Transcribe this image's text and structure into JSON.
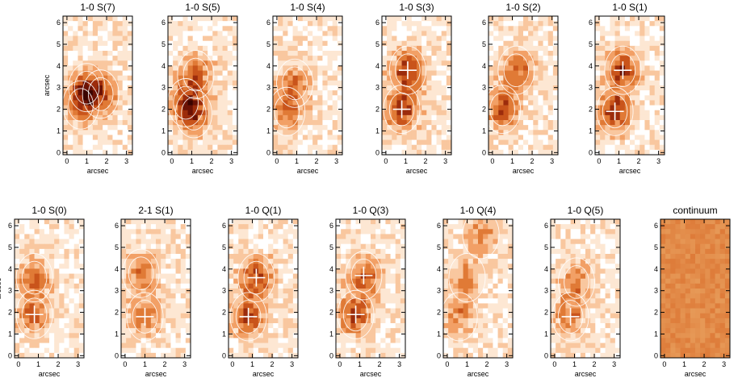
{
  "panels": [
    {
      "title": "1-0 S(7)",
      "peaks": [
        [
          0.7,
          2.2
        ],
        [
          1.7,
          2.7
        ],
        [
          1.0,
          3.0
        ]
      ],
      "crosses": [],
      "intensity": 0.7
    },
    {
      "title": "1-0 S(5)",
      "peaks": [
        [
          0.7,
          2.3
        ],
        [
          1.2,
          3.6
        ],
        [
          1.1,
          1.8
        ]
      ],
      "crosses": [],
      "intensity": 0.7
    },
    {
      "title": "1-0 S(4)",
      "peaks": [
        [
          0.5,
          1.9
        ],
        [
          0.9,
          3.2
        ]
      ],
      "crosses": [],
      "intensity": 0.65
    },
    {
      "title": "1-0 S(3)",
      "peaks": [
        [
          0.8,
          2.0
        ],
        [
          1.1,
          3.8
        ]
      ],
      "crosses": [
        [
          0.8,
          2.0
        ],
        [
          1.1,
          3.8
        ]
      ],
      "intensity": 1.0
    },
    {
      "title": "1-0 S(2)",
      "peaks": [
        [
          0.5,
          2.0
        ],
        [
          1.2,
          3.8
        ]
      ],
      "crosses": [],
      "intensity": 0.8
    },
    {
      "title": "1-0 S(1)",
      "peaks": [
        [
          0.8,
          1.9
        ],
        [
          1.2,
          3.8
        ]
      ],
      "crosses": [
        [
          0.8,
          1.9
        ],
        [
          1.2,
          3.8
        ]
      ],
      "intensity": 1.0
    },
    {
      "title": "1-0 S(0)",
      "peaks": [
        [
          0.8,
          1.9
        ],
        [
          0.8,
          3.6
        ]
      ],
      "crosses": [
        [
          0.8,
          1.9
        ]
      ],
      "intensity": 0.7
    },
    {
      "title": "2-1 S(1)",
      "peaks": [
        [
          1.0,
          1.8
        ],
        [
          0.8,
          3.8
        ]
      ],
      "crosses": [
        [
          1.0,
          1.8
        ]
      ],
      "intensity": 0.6
    },
    {
      "title": "1-0 Q(1)",
      "peaks": [
        [
          0.8,
          1.8
        ],
        [
          1.2,
          3.6
        ]
      ],
      "crosses": [
        [
          0.8,
          1.8
        ],
        [
          1.2,
          3.6
        ]
      ],
      "intensity": 0.9
    },
    {
      "title": "1-0 Q(3)",
      "peaks": [
        [
          0.8,
          1.9
        ],
        [
          1.2,
          3.7
        ]
      ],
      "crosses": [
        [
          0.8,
          1.9
        ],
        [
          1.2,
          3.7
        ]
      ],
      "intensity": 0.85
    },
    {
      "title": "1-0 Q(4)",
      "peaks": [
        [
          0.6,
          1.8
        ],
        [
          1.0,
          3.6
        ],
        [
          1.7,
          5.6
        ]
      ],
      "crosses": [],
      "intensity": 0.55
    },
    {
      "title": "1-0 Q(5)",
      "peaks": [
        [
          0.8,
          1.8
        ],
        [
          1.1,
          3.4
        ]
      ],
      "crosses": [
        [
          0.8,
          1.8
        ]
      ],
      "intensity": 0.6
    },
    {
      "title": "continuum",
      "peaks": [],
      "crosses": [],
      "intensity": 0.0
    }
  ],
  "axes": {
    "xlabel": "arcsec",
    "ylabel": "arcsec",
    "xticks": [
      "0",
      "1",
      "2",
      "3"
    ],
    "yticks": [
      "0",
      "1",
      "2",
      "3",
      "4",
      "5",
      "6"
    ],
    "xlim": [
      -0.2,
      3.3
    ],
    "ylim": [
      -0.1,
      6.3
    ]
  },
  "colors": {
    "palette": [
      "#ffffff",
      "#fde7d3",
      "#f9c79f",
      "#f2a066",
      "#e07a36",
      "#c9541b",
      "#9c2c0c",
      "#6b1205",
      "#3a0400"
    ],
    "continuum": "#e28a48",
    "contour": "#ffffff",
    "cross": "#ffffff"
  }
}
